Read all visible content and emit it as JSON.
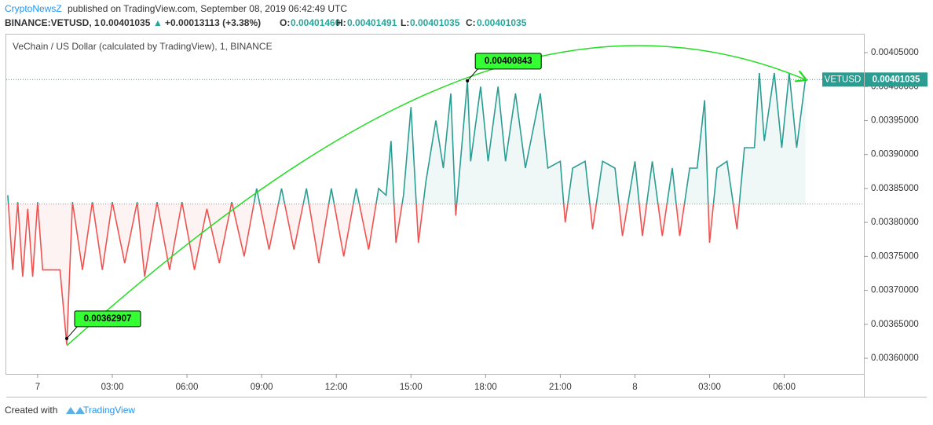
{
  "header": {
    "author": "CryptoNewsZ",
    "published": "published on TradingView.com, September 08, 2019 06:42:49 UTC",
    "symbol": "BINANCE:VETUSD, 1",
    "price": "0.00401035",
    "arrow": "▲",
    "change": "+0.00013113 (+3.38%)",
    "o_label": "O:",
    "o": "0.00401460",
    "h_label": "H:",
    "h": "0.00401491",
    "l_label": "L:",
    "l": "0.00401035",
    "c_label": "C:",
    "c": "0.00401035"
  },
  "footer": {
    "created": "Created with",
    "brand": "TradingView"
  },
  "chart_data": {
    "type": "baseline",
    "title": "VeChain / US Dollar (calculated by TradingView), 1, BINANCE",
    "symbol_tag": "VETUSD",
    "last_price": 0.00401035,
    "baseline": 0.003827,
    "up_color": "#2a9d93",
    "down_color": "#ef5350",
    "x": [
      -1.2,
      -1.0,
      -0.8,
      -0.6,
      -0.4,
      -0.2,
      0.0,
      0.2,
      0.5,
      0.9,
      1.17,
      1.4,
      1.8,
      2.2,
      2.6,
      3.0,
      3.5,
      4.0,
      4.3,
      4.8,
      5.3,
      5.8,
      6.3,
      6.8,
      7.3,
      7.8,
      8.3,
      8.8,
      9.3,
      9.8,
      10.3,
      10.8,
      11.3,
      11.8,
      12.3,
      12.8,
      13.3,
      13.7,
      14.0,
      14.2,
      14.4,
      14.7,
      15.0,
      15.3,
      15.6,
      16.0,
      16.3,
      16.6,
      16.8,
      17.27,
      17.4,
      17.8,
      18.1,
      18.5,
      18.8,
      19.2,
      19.6,
      20.2,
      20.5,
      21.0,
      21.2,
      21.5,
      22.0,
      22.3,
      22.7,
      23.2,
      23.5,
      24.0,
      24.3,
      24.7,
      25.1,
      25.5,
      25.8,
      26.2,
      26.5,
      26.8,
      27.0,
      27.3,
      27.7,
      28.1,
      28.4,
      28.8,
      29.0,
      29.2,
      29.6,
      29.9,
      30.2,
      30.5,
      30.85
    ],
    "values": [
      0.00384,
      0.00373,
      0.00383,
      0.00372,
      0.00382,
      0.00372,
      0.00383,
      0.00373,
      0.00373,
      0.00373,
      0.00362,
      0.00383,
      0.00373,
      0.00383,
      0.00373,
      0.00383,
      0.00374,
      0.00383,
      0.00372,
      0.00383,
      0.00373,
      0.00383,
      0.00373,
      0.00382,
      0.00374,
      0.00383,
      0.00375,
      0.00385,
      0.00376,
      0.00385,
      0.00376,
      0.00385,
      0.00374,
      0.00385,
      0.00375,
      0.00385,
      0.00376,
      0.00385,
      0.00384,
      0.00392,
      0.00377,
      0.00384,
      0.00397,
      0.00377,
      0.00386,
      0.00395,
      0.00388,
      0.00399,
      0.00381,
      0.00400843,
      0.00389,
      0.004,
      0.00389,
      0.004,
      0.00389,
      0.00399,
      0.00388,
      0.00399,
      0.00388,
      0.00389,
      0.0038,
      0.00388,
      0.00389,
      0.00379,
      0.00389,
      0.00388,
      0.00378,
      0.00389,
      0.00378,
      0.00389,
      0.00378,
      0.00388,
      0.00378,
      0.00388,
      0.00388,
      0.00398,
      0.00377,
      0.00388,
      0.00389,
      0.00379,
      0.00391,
      0.00391,
      0.00402,
      0.00392,
      0.00402,
      0.00391,
      0.00402,
      0.00391,
      0.00401035
    ],
    "annotations": [
      {
        "x": 1.17,
        "value": 0.00362907
      },
      {
        "x": 17.27,
        "value": 0.00400843
      }
    ],
    "xlim": [
      -1.26,
      33.2
    ],
    "xticks": [
      {
        "value": 0,
        "label": "7"
      },
      {
        "value": 3,
        "label": "03:00"
      },
      {
        "value": 6,
        "label": "06:00"
      },
      {
        "value": 9,
        "label": "09:00"
      },
      {
        "value": 12,
        "label": "12:00"
      },
      {
        "value": 15,
        "label": "15:00"
      },
      {
        "value": 18,
        "label": "18:00"
      },
      {
        "value": 21,
        "label": "21:00"
      },
      {
        "value": 24,
        "label": "8"
      },
      {
        "value": 27,
        "label": "03:00"
      },
      {
        "value": 30,
        "label": "06:00"
      }
    ],
    "ylim": [
      0.0035769,
      0.0040766
    ],
    "yticks": [
      {
        "value": 0.0036,
        "label": "0.00360000"
      },
      {
        "value": 0.00365,
        "label": "0.00365000"
      },
      {
        "value": 0.0037,
        "label": "0.00370000"
      },
      {
        "value": 0.00375,
        "label": "0.00375000"
      },
      {
        "value": 0.0038,
        "label": "0.00380000"
      },
      {
        "value": 0.00385,
        "label": "0.00385000"
      },
      {
        "value": 0.0039,
        "label": "0.00390000"
      },
      {
        "value": 0.00395,
        "label": "0.00395000"
      },
      {
        "value": 0.004,
        "label": "0.00400000"
      },
      {
        "value": 0.00405,
        "label": "0.00405000"
      }
    ]
  }
}
